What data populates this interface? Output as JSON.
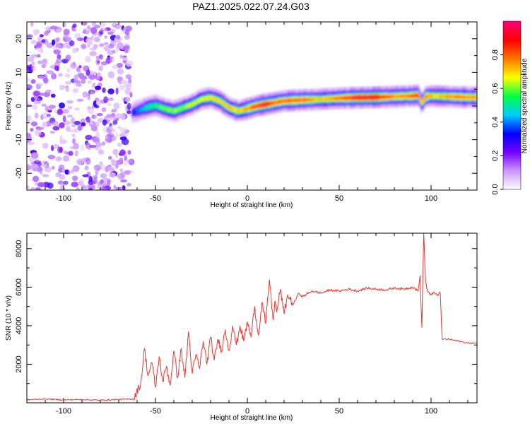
{
  "title": "PAZ1.2025.022.07.24.G03",
  "chart_data": [
    {
      "type": "heatmap",
      "xlabel": "Height of straight line (km)",
      "ylabel": "Frequency (Hz)",
      "xlim": [
        -120,
        125
      ],
      "ylim": [
        -25,
        25
      ],
      "xticks": [
        -100,
        -50,
        0,
        50,
        100
      ],
      "yticks": [
        -20,
        -10,
        0,
        10,
        20
      ],
      "noise_region": [
        -120,
        -63
      ],
      "ridge": {
        "x": [
          -63,
          -60,
          -55,
          -50,
          -45,
          -40,
          -35,
          -30,
          -25,
          -20,
          -15,
          -10,
          -5,
          0,
          5,
          10,
          15,
          20,
          30,
          40,
          50,
          60,
          70,
          80,
          90,
          93,
          95,
          97,
          100,
          105,
          110,
          115,
          120,
          125
        ],
        "freq": [
          -2,
          -1.5,
          -0.5,
          0.2,
          -0.8,
          -1.5,
          -0.5,
          0.5,
          2,
          2.5,
          1.5,
          -0.5,
          -1.5,
          -0.8,
          0,
          0.5,
          1,
          1.5,
          1.8,
          2,
          2.3,
          2.5,
          2.6,
          2.8,
          3,
          3.2,
          0.8,
          2.8,
          3,
          2.9,
          2.8,
          2.7,
          2.6,
          2.6
        ],
        "amp": [
          0.3,
          0.4,
          0.5,
          0.55,
          0.6,
          0.6,
          0.62,
          0.65,
          0.65,
          0.68,
          0.7,
          0.72,
          0.7,
          0.75,
          0.85,
          0.9,
          0.8,
          0.8,
          0.8,
          0.7,
          0.78,
          0.88,
          0.9,
          0.75,
          0.8,
          0.85,
          0.7,
          0.8,
          0.7,
          0.72,
          0.75,
          0.78,
          0.75,
          0.75
        ]
      },
      "colorbar": {
        "label": "Normalized spectral amplitude",
        "ticks": [
          0.0,
          0.2,
          0.4,
          0.6,
          0.8
        ],
        "range": [
          0,
          1
        ],
        "colors": [
          "#ffffff",
          "#cc99ff",
          "#7700ff",
          "#0000ff",
          "#00ccff",
          "#00ff44",
          "#ffff00",
          "#ff7700",
          "#ff0000",
          "#ff0077"
        ]
      }
    },
    {
      "type": "line",
      "xlabel": "Height of straight line (km)",
      "ylabel": "SNR (10 * v/v)",
      "xlim": [
        -120,
        125
      ],
      "ylim": [
        0,
        8800
      ],
      "xticks": [
        -100,
        -50,
        0,
        50,
        100
      ],
      "yticks": [
        2000,
        4000,
        6000,
        8000
      ],
      "color": "#e53935",
      "series": [
        {
          "x": [
            -120,
            -110,
            -100,
            -90,
            -80,
            -70,
            -62,
            -58,
            -56,
            -54,
            -52,
            -50,
            -48,
            -46,
            -44,
            -42,
            -40,
            -38,
            -36,
            -34,
            -32,
            -30,
            -28,
            -26,
            -24,
            -22,
            -20,
            -18,
            -16,
            -14,
            -12,
            -10,
            -8,
            -6,
            -4,
            -2,
            0,
            2,
            4,
            6,
            8,
            10,
            12,
            14,
            15,
            16,
            18,
            20,
            22,
            25,
            28,
            30,
            35,
            40,
            45,
            50,
            55,
            60,
            65,
            70,
            75,
            80,
            85,
            90,
            93,
            94,
            95,
            96,
            97,
            98,
            100,
            102,
            104,
            105,
            106,
            108,
            110,
            115,
            120,
            125
          ],
          "y": [
            150,
            200,
            150,
            170,
            130,
            170,
            200,
            1000,
            2800,
            1400,
            2100,
            800,
            2400,
            1100,
            1900,
            900,
            2700,
            1300,
            2800,
            1300,
            3700,
            1500,
            2500,
            1800,
            3200,
            2000,
            3400,
            2200,
            3300,
            2700,
            3800,
            2700,
            4000,
            3000,
            4000,
            3200,
            4200,
            3400,
            5000,
            3500,
            5200,
            4100,
            6400,
            4300,
            5300,
            4700,
            5900,
            4600,
            5600,
            5100,
            5700,
            5500,
            5800,
            5700,
            5850,
            5800,
            5900,
            5800,
            5950,
            5900,
            5850,
            5950,
            5900,
            6000,
            5800,
            6600,
            3900,
            8800,
            6300,
            5800,
            5600,
            5700,
            5600,
            5700,
            3300,
            3300,
            3300,
            3200,
            3100,
            3100
          ]
        }
      ]
    }
  ]
}
